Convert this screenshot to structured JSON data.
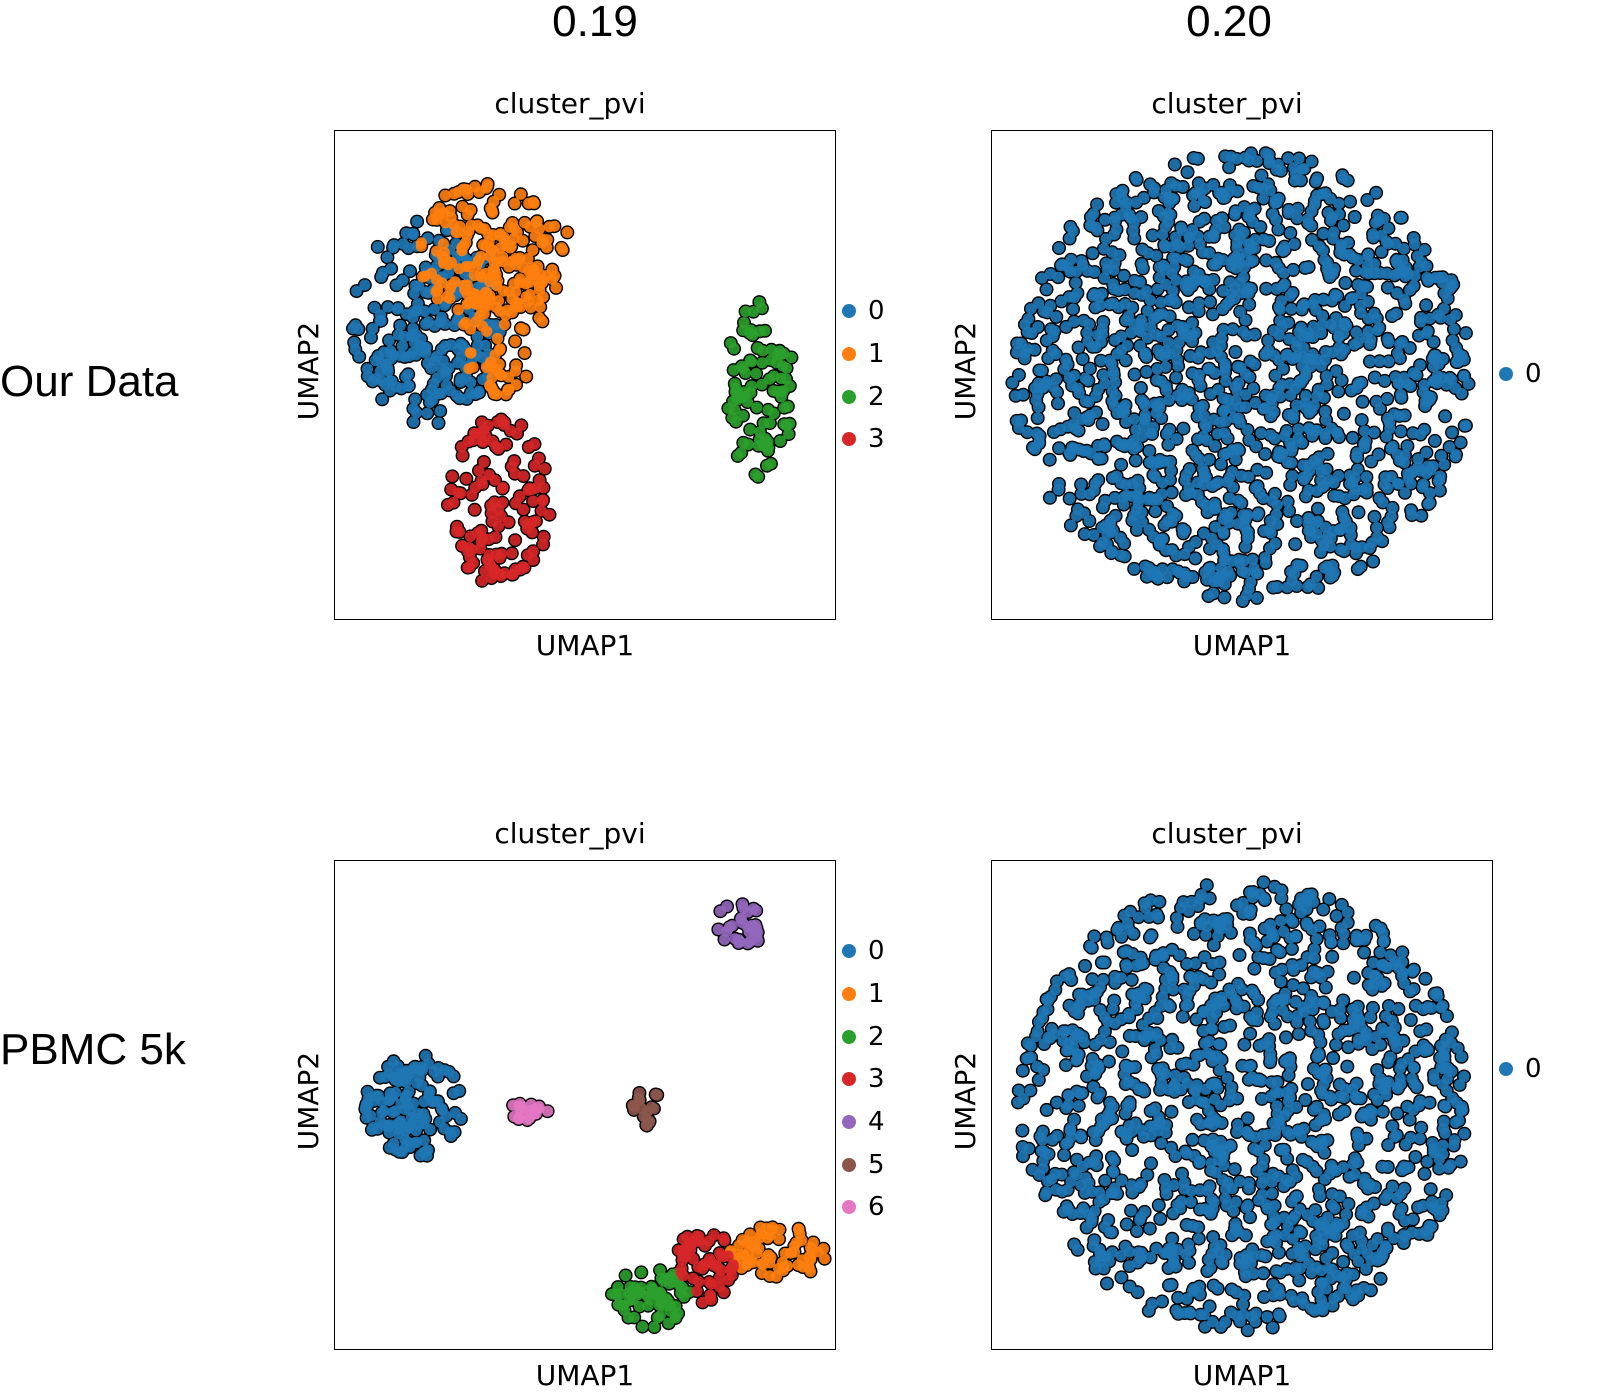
{
  "column_headers": [
    "0.19",
    "0.20"
  ],
  "row_headers": [
    "Our Data",
    "PBMC 5k"
  ],
  "chart_data": [
    {
      "type": "scatter",
      "title": "cluster_pvi",
      "xlabel": "UMAP1",
      "ylabel": "UMAP2",
      "grid": false,
      "legend_position": "right",
      "series": [
        {
          "name": "0",
          "color": "#1f77b4",
          "regions": [
            [
              3.2,
              6.5,
              2.6,
              2.4
            ]
          ]
        },
        {
          "name": "1",
          "color": "#ff7f0e",
          "regions": [
            [
              5.5,
              8.2,
              2.8,
              1.6
            ],
            [
              5.8,
              6.6,
              1.5,
              1.8
            ]
          ]
        },
        {
          "name": "2",
          "color": "#2ca02c",
          "regions": [
            [
              14.8,
              4.9,
              1.2,
              2.1
            ]
          ]
        },
        {
          "name": "3",
          "color": "#d62728",
          "regions": [
            [
              5.7,
              2.3,
              1.8,
              2.0
            ]
          ]
        }
      ]
    },
    {
      "type": "scatter",
      "title": "cluster_pvi",
      "xlabel": "UMAP1",
      "ylabel": "UMAP2",
      "grid": false,
      "legend_position": "right",
      "series": [
        {
          "name": "0",
          "color": "#1f77b4",
          "regions": [
            [
              5.0,
              5.0,
              4.6,
              4.6
            ]
          ]
        }
      ]
    },
    {
      "type": "scatter",
      "title": "cluster_pvi",
      "xlabel": "UMAP1",
      "ylabel": "UMAP2",
      "grid": false,
      "legend_position": "right",
      "series": [
        {
          "name": "0",
          "color": "#1f77b4",
          "regions": [
            [
              1.6,
              5.2,
              1.0,
              1.1
            ]
          ]
        },
        {
          "name": "1",
          "color": "#ff7f0e",
          "regions": [
            [
              9.0,
              2.1,
              1.0,
              0.6
            ]
          ]
        },
        {
          "name": "2",
          "color": "#2ca02c",
          "regions": [
            [
              6.4,
              1.2,
              0.8,
              0.7
            ]
          ]
        },
        {
          "name": "3",
          "color": "#d62728",
          "regions": [
            [
              7.5,
              1.8,
              0.6,
              0.8
            ]
          ]
        },
        {
          "name": "4",
          "color": "#9467bd",
          "regions": [
            [
              8.2,
              9.0,
              0.5,
              0.5
            ]
          ]
        },
        {
          "name": "5",
          "color": "#8c564b",
          "regions": [
            [
              6.3,
              5.2,
              0.3,
              0.45
            ]
          ]
        },
        {
          "name": "6",
          "color": "#e377c2",
          "regions": [
            [
              3.9,
              5.1,
              0.45,
              0.2
            ]
          ]
        }
      ]
    },
    {
      "type": "scatter",
      "title": "cluster_pvi",
      "xlabel": "UMAP1",
      "ylabel": "UMAP2",
      "grid": false,
      "legend_position": "right",
      "series": [
        {
          "name": "0",
          "color": "#1f77b4",
          "regions": [
            [
              5.0,
              5.0,
              4.5,
              4.6
            ]
          ]
        }
      ]
    }
  ]
}
